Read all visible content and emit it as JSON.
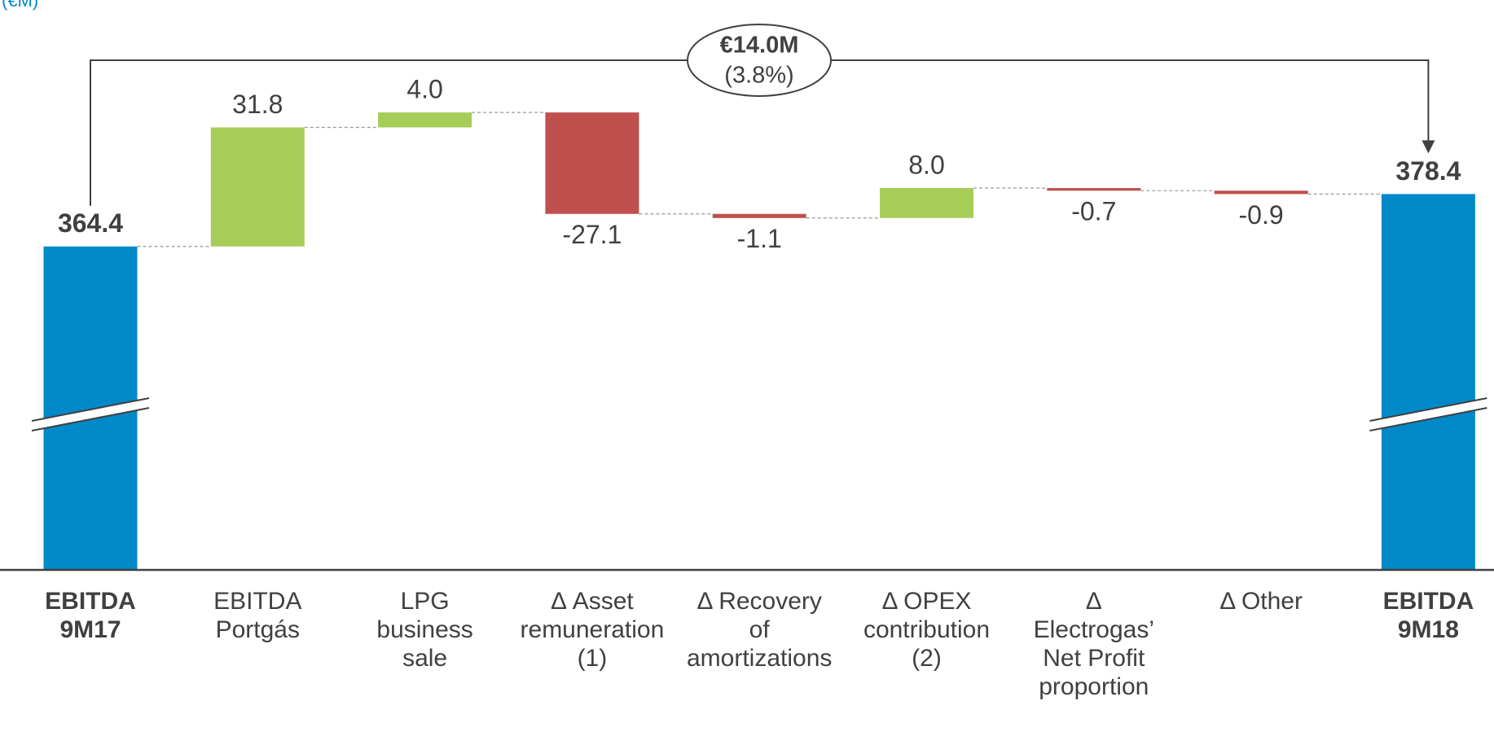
{
  "chart_data": {
    "type": "waterfall",
    "subtitle": "(€M)",
    "categories": [
      [
        "EBITDA",
        "9M17"
      ],
      [
        "EBITDA",
        "Portgás"
      ],
      [
        "LPG",
        "business",
        "sale"
      ],
      [
        "Δ Asset",
        "remuneration",
        "(1)"
      ],
      [
        "Δ Recovery",
        "of",
        "amortizations"
      ],
      [
        "Δ OPEX",
        "contribution",
        "(2)"
      ],
      [
        "Δ",
        "Electrogas’",
        "Net Profit",
        "proportion"
      ],
      [
        "Δ Other"
      ],
      [
        "EBITDA",
        "9M18"
      ]
    ],
    "measures": [
      "total",
      "relative",
      "relative",
      "relative",
      "relative",
      "relative",
      "relative",
      "relative",
      "total"
    ],
    "values": [
      364.4,
      31.8,
      4.0,
      -27.1,
      -1.1,
      8.0,
      -0.7,
      -0.9,
      378.4
    ],
    "value_labels": [
      "364.4",
      "31.8",
      "4.0",
      "-27.1",
      "-1.1",
      "8.0",
      "-0.7",
      "-0.9",
      "378.4"
    ],
    "colors": {
      "total": "#0089c9",
      "increase": "#a6cd57",
      "decrease": "#c0504d"
    },
    "annotation": {
      "value": "€14.0M",
      "percent": "(3.8%)"
    },
    "ylim": [
      278,
      385
    ],
    "axis_break": true
  }
}
